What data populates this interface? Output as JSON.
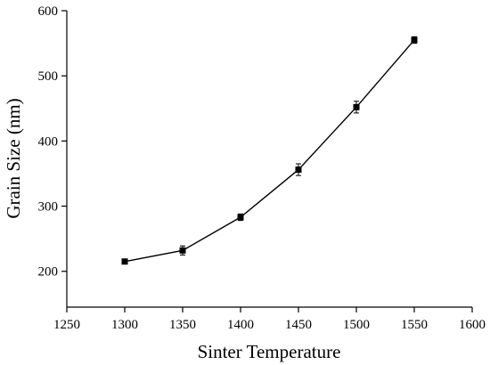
{
  "chart_data": {
    "type": "line",
    "title": "",
    "xlabel": "Sinter Temperature",
    "ylabel": "Grain Size (nm)",
    "xlim": [
      1250,
      1600
    ],
    "ylim": [
      145,
      600
    ],
    "x_ticks": [
      1250,
      1300,
      1350,
      1400,
      1450,
      1500,
      1550,
      1600
    ],
    "y_ticks": [
      200,
      300,
      400,
      500,
      600
    ],
    "grid": false,
    "legend": "none",
    "series": [
      {
        "x": [
          1300,
          1350,
          1400,
          1450,
          1500,
          1550
        ],
        "values": [
          215,
          232,
          283,
          356,
          452,
          555
        ],
        "error": [
          3,
          7,
          5,
          9,
          9,
          5
        ],
        "marker": "square",
        "color": "#000000"
      }
    ]
  }
}
